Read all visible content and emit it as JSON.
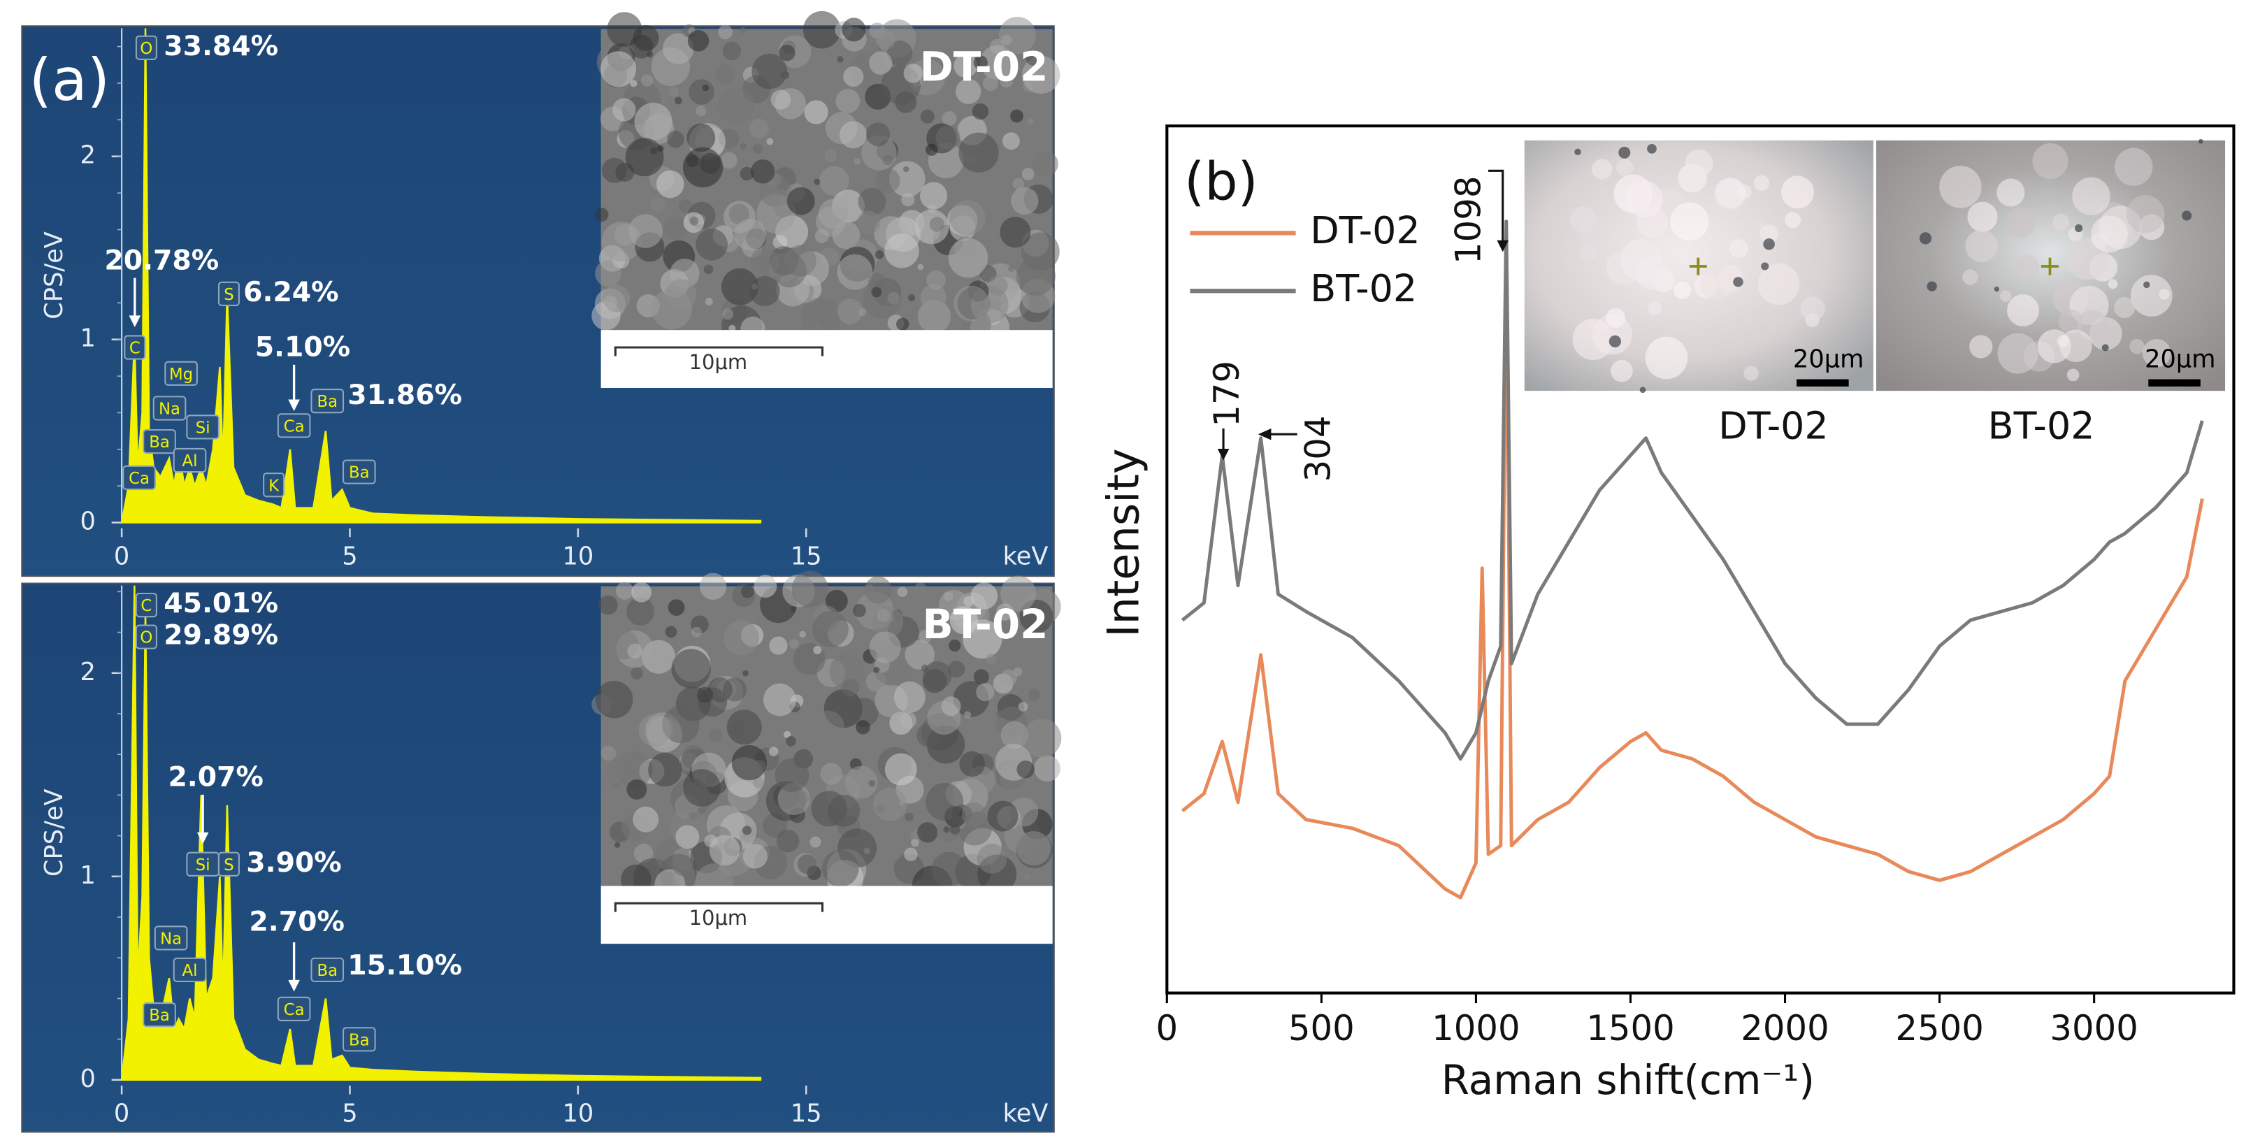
{
  "chart_data": [
    {
      "type": "area",
      "panel_label": "(a)",
      "xlabel": "keV",
      "ylabel": "CPS/eV",
      "color": "#f2f200",
      "x": [
        0,
        0.15,
        0.28,
        0.35,
        0.45,
        0.52,
        0.6,
        0.7,
        0.85,
        1.04,
        1.15,
        1.25,
        1.37,
        1.49,
        1.6,
        1.74,
        1.85,
        2.0,
        2.15,
        2.22,
        2.31,
        2.45,
        2.7,
        3.0,
        3.31,
        3.5,
        3.69,
        3.8,
        4.2,
        4.47,
        4.6,
        4.83,
        5.0,
        5.5,
        6.5,
        8,
        10,
        12,
        14
      ],
      "values": [
        0,
        0.2,
        1.0,
        0.3,
        0.6,
        2.7,
        0.5,
        0.3,
        0.25,
        0.35,
        0.2,
        0.4,
        0.2,
        0.3,
        0.2,
        0.3,
        0.2,
        0.4,
        0.85,
        0.3,
        1.25,
        0.3,
        0.15,
        0.12,
        0.1,
        0.08,
        0.4,
        0.08,
        0.08,
        0.5,
        0.12,
        0.18,
        0.08,
        0.05,
        0.04,
        0.03,
        0.02,
        0.015,
        0.01
      ],
      "xlim": [
        -0.5,
        20.4
      ],
      "ylim": [
        0,
        2.7
      ],
      "xticks": [
        0,
        5,
        10,
        15
      ],
      "yticks": [
        0,
        1,
        2
      ],
      "peak_labels": [
        "O",
        "C",
        "Mg",
        "Na",
        "Ba",
        "Si",
        "Al",
        "Ca",
        "S",
        "Ca",
        "Ba",
        "K",
        "Ba"
      ],
      "annotations": [
        "33.84%",
        "20.78%",
        "6.24%",
        "5.10%",
        "31.86%"
      ],
      "inset": {
        "label": "DT-02",
        "scale_bar": "10μm"
      }
    },
    {
      "type": "area",
      "xlabel": "keV",
      "ylabel": "CPS/eV",
      "color": "#f2f200",
      "x": [
        0,
        0.15,
        0.28,
        0.35,
        0.45,
        0.52,
        0.6,
        0.7,
        0.85,
        1.04,
        1.15,
        1.25,
        1.37,
        1.49,
        1.6,
        1.74,
        1.85,
        2.0,
        2.15,
        2.22,
        2.31,
        2.45,
        2.7,
        3.0,
        3.31,
        3.5,
        3.69,
        3.8,
        4.2,
        4.47,
        4.6,
        4.83,
        5.0,
        5.5,
        6.5,
        8,
        10,
        12,
        14
      ],
      "values": [
        0,
        0.3,
        2.43,
        0.5,
        0.9,
        2.3,
        0.6,
        0.35,
        0.3,
        0.5,
        0.25,
        0.3,
        0.25,
        0.4,
        0.3,
        1.4,
        0.4,
        0.5,
        1.0,
        0.4,
        1.35,
        0.3,
        0.15,
        0.1,
        0.08,
        0.07,
        0.25,
        0.07,
        0.07,
        0.4,
        0.1,
        0.12,
        0.06,
        0.05,
        0.04,
        0.03,
        0.02,
        0.015,
        0.01
      ],
      "xlim": [
        -0.5,
        20.4
      ],
      "ylim": [
        0,
        2.43
      ],
      "xticks": [
        0,
        5,
        10,
        15
      ],
      "yticks": [
        0,
        1,
        2
      ],
      "peak_labels": [
        "C",
        "O",
        "Si",
        "S",
        "Na",
        "Al",
        "Ba",
        "Ca",
        "Ba",
        "Ba"
      ],
      "annotations": [
        "45.01%",
        "29.89%",
        "2.07%",
        "3.90%",
        "2.70%",
        "15.10%"
      ],
      "inset": {
        "label": "BT-02",
        "scale_bar": "10μm"
      }
    },
    {
      "type": "line",
      "panel_label": "(b)",
      "xlabel": "Raman shift(cm⁻¹)",
      "ylabel": "Intensity",
      "x": [
        50,
        120,
        179,
        230,
        304,
        360,
        450,
        600,
        750,
        900,
        950,
        1000,
        1020,
        1040,
        1080,
        1098,
        1115,
        1200,
        1300,
        1400,
        1500,
        1550,
        1600,
        1700,
        1800,
        1900,
        2000,
        2100,
        2200,
        2300,
        2400,
        2500,
        2600,
        2700,
        2800,
        2900,
        3000,
        3050,
        3100,
        3200,
        3300,
        3350
      ],
      "series": [
        {
          "name": "DT-02",
          "color": "#e8895a",
          "values": [
            21,
            23,
            29,
            22,
            39,
            23,
            20,
            19,
            17,
            12,
            11,
            15,
            49,
            16,
            17,
            85,
            17,
            20,
            22,
            26,
            29,
            30,
            28,
            27,
            25,
            22,
            20,
            18,
            17,
            16,
            14,
            13,
            14,
            16,
            18,
            20,
            23,
            25,
            36,
            42,
            48,
            57
          ]
        },
        {
          "name": "BT-02",
          "color": "#7a7a7a",
          "values": [
            43,
            45,
            62,
            47,
            64,
            46,
            44,
            41,
            36,
            30,
            27,
            30,
            33,
            36,
            40,
            89,
            38,
            46,
            52,
            58,
            62,
            64,
            60,
            55,
            50,
            44,
            38,
            34,
            31,
            31,
            35,
            40,
            43,
            44,
            45,
            47,
            50,
            52,
            53,
            56,
            60,
            66
          ]
        }
      ],
      "xlim": [
        0,
        3452
      ],
      "ylim": [
        0,
        100
      ],
      "xticks": [
        0,
        500,
        1000,
        1500,
        2000,
        2500,
        3000
      ],
      "annotations": [
        "179",
        "304",
        "1098"
      ],
      "insets": [
        {
          "label": "DT-02",
          "scale_bar": "20μm"
        },
        {
          "label": "BT-02",
          "scale_bar": "20μm"
        }
      ]
    }
  ]
}
